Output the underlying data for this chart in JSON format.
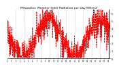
{
  "title": "Milwaukee Weather Solar Radiation per Day KW/m2",
  "background_color": "#ffffff",
  "line_color": "#ff0000",
  "line_width": 0.6,
  "vline_color": "#999999",
  "vline_style": ":",
  "ylim": [
    0,
    6.5
  ],
  "ytick_labels": [
    "6",
    "5",
    "4",
    "3",
    "2",
    "1",
    "0"
  ],
  "ytick_vals": [
    6,
    5,
    4,
    3,
    2,
    1,
    0
  ],
  "n_days": 730,
  "noise_seed": 42
}
